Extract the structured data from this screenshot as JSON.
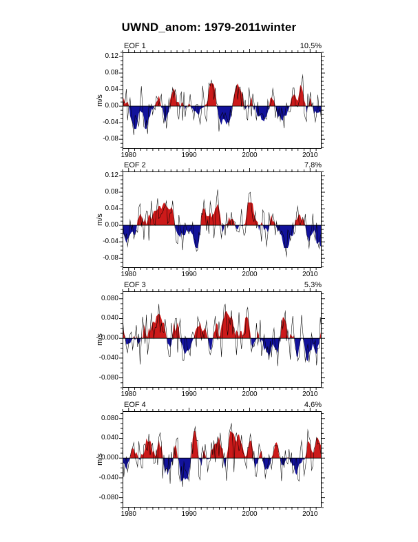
{
  "chart_data": {
    "type": "line",
    "title": "UWND_anom: 1979-2011winter",
    "ylabel": "m/s",
    "x": {
      "start": 1979,
      "end": 2011.9,
      "ticks": [
        "1980",
        "1990",
        "2000",
        "2010"
      ],
      "tick_values": [
        1980,
        1990,
        2000,
        2010
      ],
      "minor_step": 1
    },
    "colors": {
      "positive_fill": "#cc1a1a",
      "negative_fill": "#12129b",
      "line": "#000000",
      "frame": "#000000",
      "background": "#ffffff"
    },
    "legend": "red fill = positive anomaly, blue fill = negative anomaly, black line = unfiltered series",
    "panels": [
      {
        "label": "EOF 1",
        "variance": "10.5%",
        "ymin": -0.103,
        "ymax": 0.13,
        "ytick_labels": [
          "0.12",
          "0.08",
          "0.04",
          "0.00",
          "-0.04",
          "-0.08"
        ],
        "ytick_values": [
          0.12,
          0.08,
          0.04,
          0.0,
          -0.04,
          -0.08
        ],
        "yminor_step": 0.01,
        "n_points": 160,
        "seed": 101,
        "amp": 0.07,
        "smooth_gain": 1.45
      },
      {
        "label": "EOF 2",
        "variance": "7.8%",
        "ymin": -0.103,
        "ymax": 0.13,
        "ytick_labels": [
          "0.12",
          "0.08",
          "0.04",
          "0.00",
          "-0.04",
          "-0.08"
        ],
        "ytick_values": [
          0.12,
          0.08,
          0.04,
          0.0,
          -0.04,
          -0.08
        ],
        "yminor_step": 0.01,
        "n_points": 160,
        "seed": 202,
        "amp": 0.07,
        "smooth_gain": 1.45
      },
      {
        "label": "EOF 3",
        "variance": "5.3%",
        "ymin": -0.1,
        "ymax": 0.095,
        "ytick_labels": [
          "0.080",
          "0.040",
          "0.000",
          "-0.040",
          "-0.080"
        ],
        "ytick_values": [
          0.08,
          0.04,
          0.0,
          -0.04,
          -0.08
        ],
        "yminor_step": 0.01,
        "n_points": 160,
        "seed": 303,
        "amp": 0.062,
        "smooth_gain": 1.45
      },
      {
        "label": "EOF 4",
        "variance": "4.6%",
        "ymin": -0.1,
        "ymax": 0.095,
        "ytick_labels": [
          "0.080",
          "0.040",
          "0.000",
          "-0.040",
          "-0.080"
        ],
        "ytick_values": [
          0.08,
          0.04,
          0.0,
          -0.04,
          -0.08
        ],
        "yminor_step": 0.01,
        "n_points": 160,
        "seed": 404,
        "amp": 0.062,
        "smooth_gain": 1.45
      }
    ]
  }
}
